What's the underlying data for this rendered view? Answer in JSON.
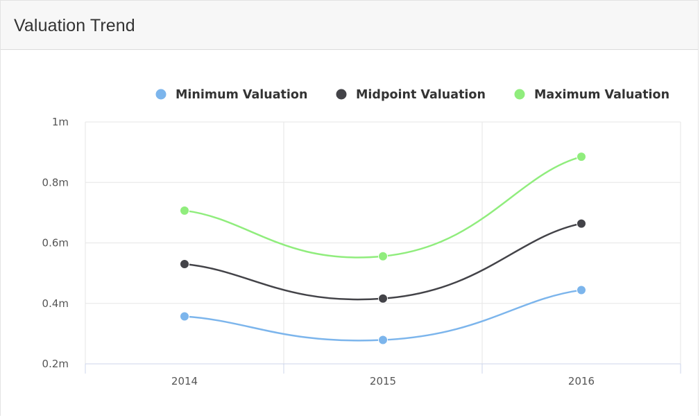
{
  "panel": {
    "title": "Valuation Trend"
  },
  "colors": {
    "min": "#7cb5ec",
    "mid": "#434348",
    "max": "#90ed7d",
    "grid": "#e6e6e6",
    "axis_line": "#ccd6eb",
    "tick_text": "#555555",
    "legend_text": "#333333"
  },
  "chart_data": {
    "type": "line",
    "x": [
      "2014",
      "2015",
      "2016"
    ],
    "ylim": [
      0.2,
      1.0
    ],
    "yticks": [
      {
        "value": 0.2,
        "label": "0.2m"
      },
      {
        "value": 0.4,
        "label": "0.4m"
      },
      {
        "value": 0.6,
        "label": "0.6m"
      },
      {
        "value": 0.8,
        "label": "0.8m"
      },
      {
        "value": 1.0,
        "label": "1m"
      }
    ],
    "grid": true,
    "legend_position": "top-right",
    "title": "",
    "xlabel": "",
    "ylabel": "",
    "series": [
      {
        "name": "Minimum Valuation",
        "color_key": "min",
        "values": [
          0.357,
          0.279,
          0.444
        ]
      },
      {
        "name": "Midpoint Valuation",
        "color_key": "mid",
        "values": [
          0.53,
          0.416,
          0.664
        ]
      },
      {
        "name": "Maximum Valuation",
        "color_key": "max",
        "values": [
          0.707,
          0.556,
          0.885
        ]
      }
    ]
  }
}
